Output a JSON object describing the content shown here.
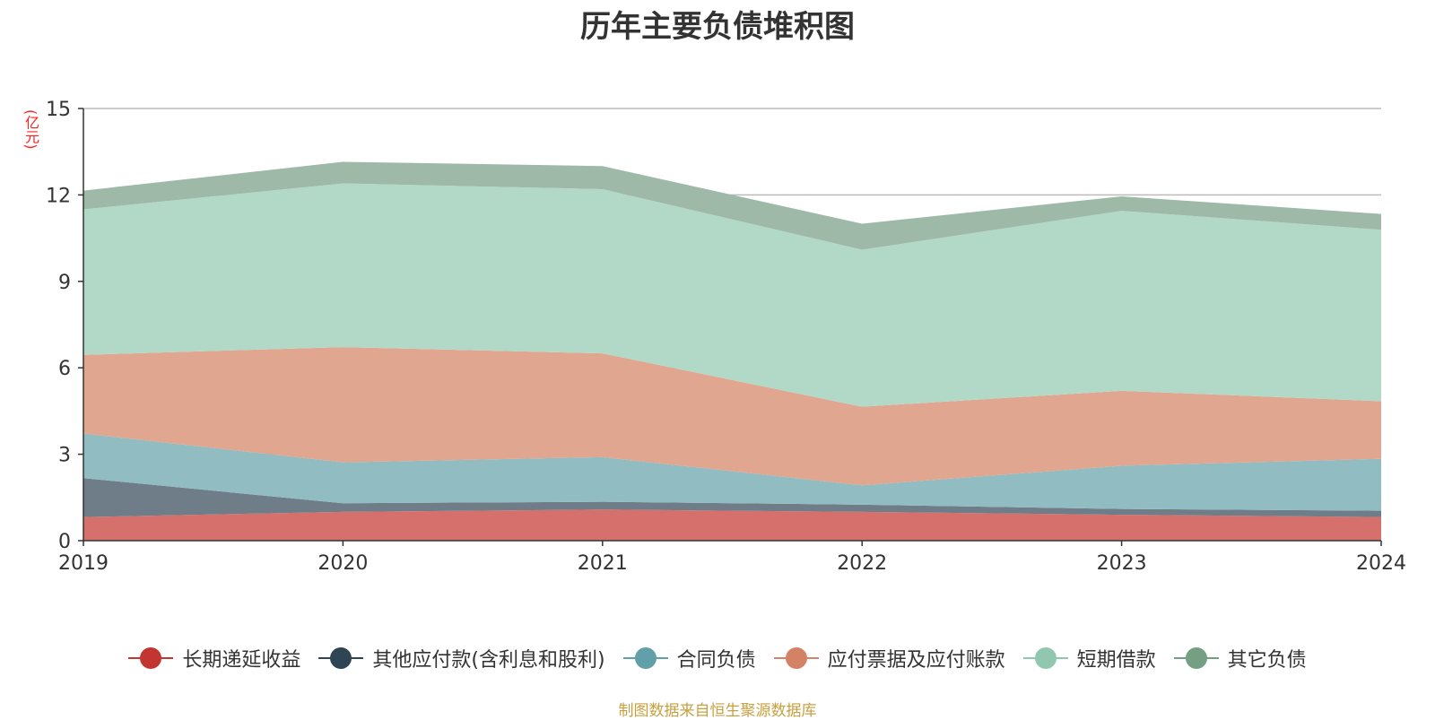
{
  "chart_data": {
    "type": "area",
    "title": "历年主要负债堆积图",
    "ylabel": "(亿元)",
    "xlabel": "",
    "categories": [
      "2019",
      "2020",
      "2021",
      "2022",
      "2023",
      "2024"
    ],
    "y_ticks": [
      "0",
      "3",
      "6",
      "9",
      "12",
      "15"
    ],
    "ylim": [
      0,
      15
    ],
    "stacked": true,
    "grid": true,
    "legend_position": "bottom",
    "series": [
      {
        "name": "长期递延收益",
        "color": "#c23531",
        "fill": "#d6706c",
        "values": [
          0.82,
          1.0,
          1.08,
          1.0,
          0.9,
          0.82
        ]
      },
      {
        "name": "其他应付款(含利息和股利)",
        "color": "#2f4554",
        "fill": "#6e7d88",
        "values": [
          1.35,
          0.3,
          0.27,
          0.25,
          0.2,
          0.22
        ]
      },
      {
        "name": "合同负债",
        "color": "#61a0a8",
        "fill": "#90bcc2",
        "values": [
          1.55,
          1.42,
          1.55,
          0.67,
          1.5,
          1.8
        ]
      },
      {
        "name": "应付票据及应付账款",
        "color": "#d48265",
        "fill": "#e0a690",
        "values": [
          2.73,
          4.0,
          3.6,
          2.73,
          2.6,
          2.0
        ]
      },
      {
        "name": "短期借款",
        "color": "#91c7ae",
        "fill": "#b2d9c7",
        "values": [
          5.05,
          5.68,
          5.7,
          5.45,
          6.25,
          5.95
        ]
      },
      {
        "name": "其它负债",
        "color": "#749f83",
        "fill": "#9eb9a7",
        "values": [
          0.65,
          0.75,
          0.8,
          0.9,
          0.5,
          0.55
        ]
      }
    ]
  },
  "source_text": "制图数据来自恒生聚源数据库"
}
